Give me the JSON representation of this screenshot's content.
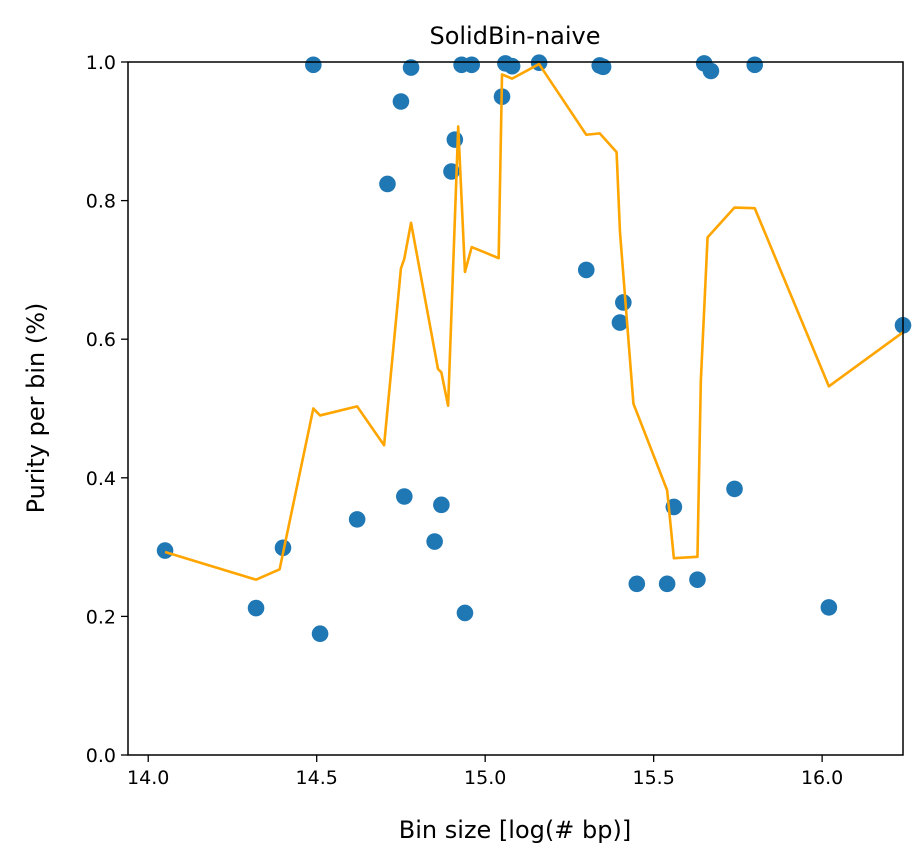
{
  "chart_data": {
    "type": "scatter",
    "title": "SolidBin-naive",
    "xlabel": "Bin size [log(# bp)]",
    "ylabel": "Purity per bin (%)",
    "xlim": [
      13.94,
      16.24
    ],
    "ylim": [
      0.0,
      1.0
    ],
    "x_ticks": [
      14.0,
      14.5,
      15.0,
      15.5,
      16.0
    ],
    "x_tick_labels": [
      "14.0",
      "14.5",
      "15.0",
      "15.5",
      "16.0"
    ],
    "y_ticks": [
      0.0,
      0.2,
      0.4,
      0.6,
      0.8,
      1.0
    ],
    "y_tick_labels": [
      "0.0",
      "0.2",
      "0.4",
      "0.6",
      "0.8",
      "1.0"
    ],
    "grid": false,
    "series": [
      {
        "type": "scatter",
        "color": "#1f77b4",
        "points": [
          [
            14.05,
            0.295
          ],
          [
            14.32,
            0.212
          ],
          [
            14.4,
            0.299
          ],
          [
            14.49,
            0.996
          ],
          [
            14.51,
            0.175
          ],
          [
            14.62,
            0.34
          ],
          [
            14.71,
            0.824
          ],
          [
            14.75,
            0.943
          ],
          [
            14.76,
            0.373
          ],
          [
            14.78,
            0.992
          ],
          [
            14.85,
            0.308
          ],
          [
            14.87,
            0.361
          ],
          [
            14.9,
            0.842
          ],
          [
            14.91,
            0.888
          ],
          [
            14.93,
            0.996
          ],
          [
            14.94,
            0.205
          ],
          [
            14.96,
            0.996
          ],
          [
            15.05,
            0.95
          ],
          [
            15.06,
            0.998
          ],
          [
            15.08,
            0.994
          ],
          [
            15.16,
            0.999
          ],
          [
            15.3,
            0.7
          ],
          [
            15.34,
            0.995
          ],
          [
            15.35,
            0.993
          ],
          [
            15.4,
            0.624
          ],
          [
            15.41,
            0.653
          ],
          [
            15.45,
            0.247
          ],
          [
            15.54,
            0.247
          ],
          [
            15.56,
            0.358
          ],
          [
            15.63,
            0.253
          ],
          [
            15.65,
            0.998
          ],
          [
            15.67,
            0.987
          ],
          [
            15.74,
            0.384
          ],
          [
            15.8,
            0.996
          ],
          [
            16.02,
            0.213
          ],
          [
            16.24,
            0.62
          ]
        ]
      },
      {
        "type": "line",
        "color": "#ffa500",
        "points": [
          [
            14.05,
            0.293
          ],
          [
            14.32,
            0.253
          ],
          [
            14.39,
            0.268
          ],
          [
            14.49,
            0.5
          ],
          [
            14.51,
            0.49
          ],
          [
            14.62,
            0.503
          ],
          [
            14.7,
            0.447
          ],
          [
            14.75,
            0.702
          ],
          [
            14.76,
            0.716
          ],
          [
            14.78,
            0.768
          ],
          [
            14.86,
            0.557
          ],
          [
            14.87,
            0.552
          ],
          [
            14.89,
            0.504
          ],
          [
            14.92,
            0.907
          ],
          [
            14.94,
            0.697
          ],
          [
            14.96,
            0.733
          ],
          [
            15.04,
            0.717
          ],
          [
            15.05,
            0.982
          ],
          [
            15.08,
            0.976
          ],
          [
            15.16,
            0.997
          ],
          [
            15.3,
            0.895
          ],
          [
            15.34,
            0.897
          ],
          [
            15.39,
            0.87
          ],
          [
            15.4,
            0.755
          ],
          [
            15.44,
            0.507
          ],
          [
            15.54,
            0.382
          ],
          [
            15.56,
            0.284
          ],
          [
            15.63,
            0.286
          ],
          [
            15.64,
            0.54
          ],
          [
            15.66,
            0.747
          ],
          [
            15.74,
            0.79
          ],
          [
            15.8,
            0.789
          ],
          [
            16.02,
            0.532
          ],
          [
            16.24,
            0.61
          ]
        ]
      }
    ]
  }
}
